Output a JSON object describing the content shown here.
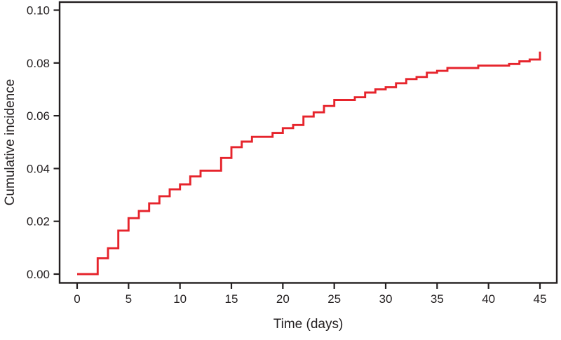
{
  "figure": {
    "background": "#ffffff",
    "axis_color": "#231f20",
    "line_color": "#e6242c"
  },
  "chart_data": {
    "type": "line",
    "subtype": "step-cumulative-incidence",
    "title": "",
    "xlabel": "Time (days)",
    "ylabel": "Cumulative incidence",
    "xlim": [
      0,
      45
    ],
    "ylim": [
      0,
      0.1
    ],
    "x_ticks": [
      0,
      5,
      10,
      15,
      20,
      25,
      30,
      35,
      40,
      45
    ],
    "y_ticks": [
      "0.00",
      "0.02",
      "0.04",
      "0.06",
      "0.08",
      "0.10"
    ],
    "grid": false,
    "legend": "none",
    "box": "full-frame",
    "series": [
      {
        "name": "Cumulative incidence",
        "color": "#e6242c",
        "step": true,
        "points": [
          [
            0,
            0.0
          ],
          [
            2,
            0.006
          ],
          [
            3,
            0.0098
          ],
          [
            4,
            0.0165
          ],
          [
            5,
            0.0212
          ],
          [
            6,
            0.0239
          ],
          [
            7,
            0.0268
          ],
          [
            8,
            0.0295
          ],
          [
            9,
            0.0321
          ],
          [
            10,
            0.034
          ],
          [
            11,
            0.037
          ],
          [
            12,
            0.0392
          ],
          [
            14,
            0.044
          ],
          [
            15,
            0.0481
          ],
          [
            16,
            0.0502
          ],
          [
            17,
            0.052
          ],
          [
            19,
            0.0535
          ],
          [
            20,
            0.0553
          ],
          [
            21,
            0.0565
          ],
          [
            22,
            0.0597
          ],
          [
            23,
            0.0613
          ],
          [
            24,
            0.0637
          ],
          [
            25,
            0.066
          ],
          [
            27,
            0.067
          ],
          [
            28,
            0.0688
          ],
          [
            29,
            0.07
          ],
          [
            30,
            0.0708
          ],
          [
            31,
            0.0723
          ],
          [
            32,
            0.0739
          ],
          [
            33,
            0.0747
          ],
          [
            34,
            0.0763
          ],
          [
            35,
            0.077
          ],
          [
            36,
            0.0781
          ],
          [
            39,
            0.079
          ],
          [
            42,
            0.0796
          ],
          [
            43,
            0.0806
          ],
          [
            44,
            0.0813
          ],
          [
            45,
            0.0843
          ]
        ]
      }
    ]
  }
}
